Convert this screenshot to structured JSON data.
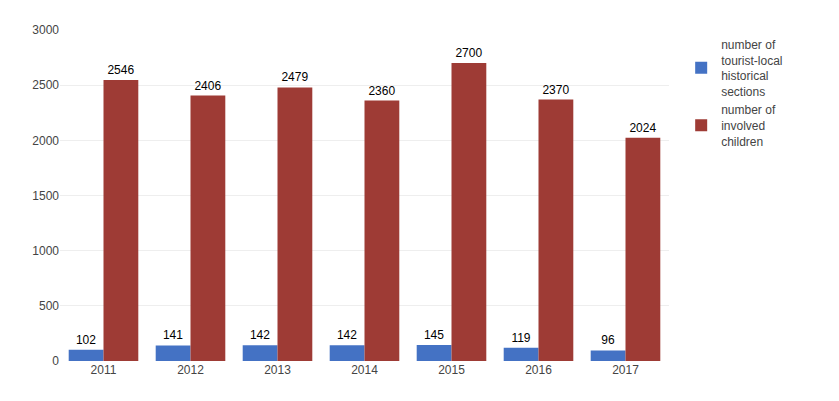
{
  "chart_data": {
    "type": "bar",
    "categories": [
      "2011",
      "2012",
      "2013",
      "2014",
      "2015",
      "2016",
      "2017"
    ],
    "series": [
      {
        "name": "number of\ntourist-local\nhistorical\nsections",
        "color": "#4472C4",
        "values": [
          102,
          141,
          142,
          142,
          145,
          119,
          96
        ]
      },
      {
        "name": "number of\ninvolved\nchildren",
        "color": "#9E3B35",
        "values": [
          2546,
          2406,
          2479,
          2360,
          2700,
          2370,
          2024
        ]
      }
    ],
    "ylim": [
      0,
      3000
    ],
    "yticks": [
      0,
      500,
      1000,
      1500,
      2000,
      2500,
      3000
    ],
    "grid": true,
    "legend": "upper right",
    "data_labels": true
  }
}
